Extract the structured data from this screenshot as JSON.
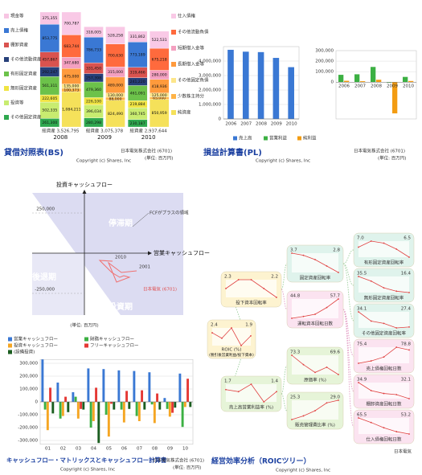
{
  "chart_data": [
    {
      "type": "stacked-bar",
      "title": "貸借対照表(BS)",
      "company": "日本電気株式会社 (6701)",
      "unit": "(単位: 百万円)",
      "copyright": "Copyright (c) Shares, Inc",
      "categories": [
        "2008",
        "2009",
        "2010"
      ],
      "total_labels": [
        "総資産 3,526,795",
        "総資産 3,075,378",
        "総資産 2,937,644"
      ],
      "assets": [
        {
          "name": "現金等",
          "color": "#f7c5e3",
          "values": [
            375355,
            318005,
            331862
          ],
          "value_labels": [
            "375,355",
            "318,005",
            "331,862"
          ]
        },
        {
          "name": "売上債権",
          "color": "#3a78d4",
          "values": [
            853775,
            786733,
            773189
          ],
          "value_labels": [
            "853,775",
            "786,733",
            "773,189"
          ]
        },
        {
          "name": "棚卸資産",
          "color": "#d9534f",
          "values": [
            457867,
            331450,
            319466
          ],
          "value_labels": [
            "457,867",
            "331,450",
            "319,466"
          ]
        },
        {
          "name": "その他流動資産",
          "color": "#27407a",
          "values": [
            292247,
            257398,
            241220
          ],
          "value_labels": [
            "292,247",
            "257,398",
            "241,220"
          ]
        },
        {
          "name": "有形固定資産",
          "color": "#6cc24a",
          "values": [
            561311,
            479360,
            461091
          ],
          "value_labels": [
            "561,311",
            "479,360",
            "461,091"
          ]
        },
        {
          "name": "無形固定資産",
          "color": "#f0e442",
          "values": [
            222605,
            226100,
            219884
          ],
          "value_labels": [
            "222,605",
            "226,100",
            "219,884"
          ]
        },
        {
          "name": "投資等",
          "color": "#c8ec70",
          "values": [
            502335,
            396034,
            360745
          ],
          "value_labels": [
            "502,335",
            "396,034",
            "360,745"
          ]
        },
        {
          "name": "その他固定資産",
          "color": "#2fa84f",
          "values": [
            261300,
            280298,
            230187
          ],
          "value_labels": [
            "261,300",
            "280,298",
            "230,187"
          ]
        }
      ],
      "liabilities": [
        {
          "name": "仕入債権",
          "color": "#f9c9e6",
          "values": [
            700787,
            528258,
            522531
          ],
          "value_labels": [
            "700,787",
            "528,258",
            "522,531"
          ]
        },
        {
          "name": "その他流動負債",
          "color": "#ff6a3d",
          "values": [
            683744,
            700630,
            675218
          ],
          "value_labels": [
            "683,744",
            "700,630",
            "675,218"
          ]
        },
        {
          "name": "短期借入金等",
          "color": "#f4a0c0",
          "values": [
            347680,
            315000,
            280000
          ],
          "value_labels": [
            "347,680",
            "315,000",
            "280,000"
          ]
        },
        {
          "name": "長期借入金等",
          "color": "#ff9a3c",
          "values": [
            475000,
            489000,
            418936
          ],
          "value_labels": [
            "475,000",
            "489,000",
            "418,936"
          ]
        },
        {
          "name": "その他固定負債",
          "color": "#fde68a",
          "values": [
            135000,
            130000,
            125000
          ],
          "value_labels": [
            "135,000",
            "130,000",
            "125,000"
          ]
        },
        {
          "name": "少数株主持分",
          "color": "#ffb347",
          "values": [
            100373,
            88000,
            65000
          ],
          "value_labels": [
            "100,373",
            "88,000",
            "65,000"
          ]
        },
        {
          "name": "純資産",
          "color": "#f5e15a",
          "values": [
            1084211,
            824490,
            850959
          ],
          "value_labels": [
            "1,084,211",
            "824,490",
            "850,959"
          ]
        }
      ]
    },
    {
      "type": "bar",
      "title": "損益計算書(PL)",
      "copyright": "Copyright (c) Shares, Inc",
      "categories": [
        "2006",
        "2007",
        "2008",
        "2009",
        "2010"
      ],
      "series": [
        {
          "name": "売上高",
          "color": "#3a78d4",
          "values": [
            4780000,
            4650000,
            4620000,
            4220000,
            3580000
          ]
        }
      ],
      "ylim": [
        0,
        5000000
      ],
      "yticks": [
        0,
        {
          "value": 1000000,
          "label": "1,000,000"
        },
        {
          "value": 2000000,
          "label": "2,000,000"
        },
        {
          "value": 3000000,
          "label": "3,000,000"
        },
        {
          "value": 4000000,
          "label": "4,000,000"
        }
      ],
      "grid": true
    },
    {
      "type": "bar",
      "company": "日本電気株式会社 (6701)",
      "unit": "(単位: 百万円)",
      "categories": [
        "2006",
        "2007",
        "2008",
        "2009",
        "2010"
      ],
      "series": [
        {
          "name": "営業利益",
          "color": "#3cb043",
          "values": [
            70000,
            75000,
            145000,
            -5000,
            50000
          ]
        },
        {
          "name": "純利益",
          "color": "#f39c12",
          "values": [
            13000,
            9000,
            23000,
            -297000,
            11000
          ]
        }
      ],
      "ylim": [
        -350000,
        300000
      ],
      "yticks": [
        0,
        {
          "value": 100000,
          "label": "100,000"
        },
        {
          "value": 200000,
          "label": "200,000"
        },
        {
          "value": 300000,
          "label": "300,000"
        }
      ],
      "grid": true
    },
    {
      "type": "line",
      "xlabel": "営業キャッシュフロー",
      "ylabel": "投資キャッシュフロー",
      "x": [
        325000,
        230000,
        150000,
        200000,
        280000,
        245000,
        220000,
        170000,
        95000,
        175000
      ],
      "values": [
        -110000,
        -120000,
        -60000,
        -180000,
        -150000,
        -140000,
        -150000,
        -120000,
        -45000,
        -50000
      ],
      "point_labels": [
        "2001",
        null,
        null,
        null,
        null,
        null,
        null,
        null,
        null,
        "2010"
      ],
      "color": "#f07070",
      "xlim": [
        -325000,
        400000
      ],
      "ylim": [
        -385000,
        375000
      ],
      "yticks": [
        {
          "value": 250000,
          "label": "250,000"
        },
        {
          "value": -250000,
          "label": "-250,000"
        }
      ],
      "region_labels": [
        "停滞期",
        "後退期",
        "投資期"
      ],
      "annotation": "FCFがプラスの領域",
      "series_label": "日本電気 (6701)",
      "unit": "(単位: 百万円)"
    },
    {
      "type": "bar",
      "title": "キャッシュフロー・マトリックスとキャッシュフロー計算書",
      "company": "日本電気株式会社 (6701)",
      "unit": "(単位: 百万円)",
      "copyright": "Copyright (c) Shares, Inc",
      "categories": [
        "01",
        "02",
        "03",
        "04",
        "05",
        "06",
        "07",
        "08",
        "09",
        "10"
      ],
      "series": [
        {
          "name": "営業キャッシュフロー",
          "color": "#3a78d4",
          "values": [
            330000,
            150000,
            75000,
            260000,
            255000,
            245000,
            240000,
            230000,
            30000,
            220000
          ]
        },
        {
          "name": "財務キャッシュフロー",
          "color": "#3cb043",
          "values": [
            -60000,
            -130000,
            40000,
            -200000,
            -100000,
            -60000,
            -110000,
            -20000,
            -55000,
            -195000
          ]
        },
        {
          "name": "投資キャッシュフロー",
          "color": "#f5a623",
          "values": [
            -220000,
            -110000,
            -130000,
            -150000,
            -270000,
            -160000,
            -150000,
            -165000,
            -115000,
            -40000
          ]
        },
        {
          "name": "フリーキャッシュフロー",
          "color": "#e53935",
          "values": [
            110000,
            40000,
            -55000,
            110000,
            -15000,
            85000,
            90000,
            65000,
            -85000,
            180000
          ]
        },
        {
          "name": "(設備投資)",
          "color": "#1b5e20",
          "values": [
            -90000,
            -80000,
            -60000,
            -320000,
            -60000,
            -55000,
            -60000,
            -60000,
            -45000,
            -40000
          ]
        }
      ],
      "ylim": [
        -330000,
        330000
      ],
      "yticks": [
        {
          "value": 300000,
          "label": "300,000"
        },
        {
          "value": 200000,
          "label": "200,000"
        },
        {
          "value": 100000,
          "label": "100,000"
        },
        0,
        {
          "value": -100000,
          "label": "-100,000"
        },
        {
          "value": -200000,
          "label": "-200,000"
        },
        {
          "value": -300000,
          "label": "-300,000"
        }
      ],
      "grid": true
    },
    {
      "type": "tree",
      "title": "経営効率分析（ROICツリー）",
      "company": "日本電気",
      "copyright": "Copyright (c) Shares, Inc",
      "nodes": [
        {
          "label": "ROIC (%)",
          "sublabel": "(税引後営業利益/投下資本)",
          "values": [
            2.4,
            1.5,
            3.2,
            0.3,
            1.9
          ],
          "value_labels": [
            "2.4",
            null,
            null,
            null,
            "1.9"
          ]
        },
        {
          "label": "投下資本回転率",
          "values": [
            2.3,
            2.4,
            2.4,
            2.3,
            2.2
          ],
          "value_labels": [
            "2.3",
            null,
            null,
            null,
            "2.2"
          ]
        },
        {
          "label": "売上高営業利益率 (%)",
          "values": [
            1.7,
            1.4,
            2.5,
            -0.1,
            1.4
          ],
          "value_labels": [
            "1.7",
            null,
            null,
            null,
            "1.4"
          ]
        },
        {
          "label": "固定資産回転率",
          "values": [
            3.7,
            3.6,
            3.4,
            3.1,
            2.8
          ],
          "value_labels": [
            "3.7",
            null,
            null,
            null,
            "2.8"
          ]
        },
        {
          "label": "運転資本回転日数",
          "values": [
            44.8,
            46.0,
            47.5,
            52.0,
            57.7
          ],
          "value_labels": [
            "44.8",
            null,
            null,
            null,
            "57.7"
          ]
        },
        {
          "label": "原価率 (%)",
          "values": [
            73.3,
            71.5,
            70.0,
            71.0,
            69.6
          ],
          "value_labels": [
            "73.3",
            null,
            null,
            null,
            "69.6"
          ]
        },
        {
          "label": "販売管理費比率 (%)",
          "values": [
            25.3,
            26.0,
            27.0,
            28.5,
            29.0
          ],
          "value_labels": [
            "25.3",
            null,
            null,
            null,
            "29.0"
          ]
        },
        {
          "label": "有形固定資産回転率",
          "values": [
            7.0,
            7.3,
            7.2,
            6.9,
            6.5
          ],
          "value_labels": [
            "7.0",
            null,
            null,
            null,
            "6.5"
          ]
        },
        {
          "label": "無形固定資産回転率",
          "values": [
            35.5,
            30.0,
            22.0,
            18.0,
            16.4
          ],
          "value_labels": [
            "35.5",
            null,
            null,
            null,
            "16.4"
          ]
        },
        {
          "label": "その他固定資産回転率",
          "values": [
            34.1,
            30.0,
            29.0,
            27.0,
            27.4
          ],
          "value_labels": [
            "34.1",
            null,
            null,
            null,
            "27.4"
          ]
        },
        {
          "label": "売上債権回転日数",
          "values": [
            75.4,
            76.0,
            77.0,
            79.5,
            78.8
          ],
          "value_labels": [
            "75.4",
            null,
            null,
            null,
            "78.8"
          ]
        },
        {
          "label": "棚卸資産回転日数",
          "values": [
            34.9,
            33.5,
            33.0,
            32.8,
            32.1
          ],
          "value_labels": [
            "34.9",
            null,
            null,
            null,
            "32.1"
          ]
        },
        {
          "label": "仕入債権回転日数",
          "values": [
            65.5,
            62.0,
            58.0,
            55.0,
            53.2
          ],
          "value_labels": [
            "65.5",
            null,
            null,
            null,
            "53.2"
          ]
        }
      ]
    }
  ]
}
